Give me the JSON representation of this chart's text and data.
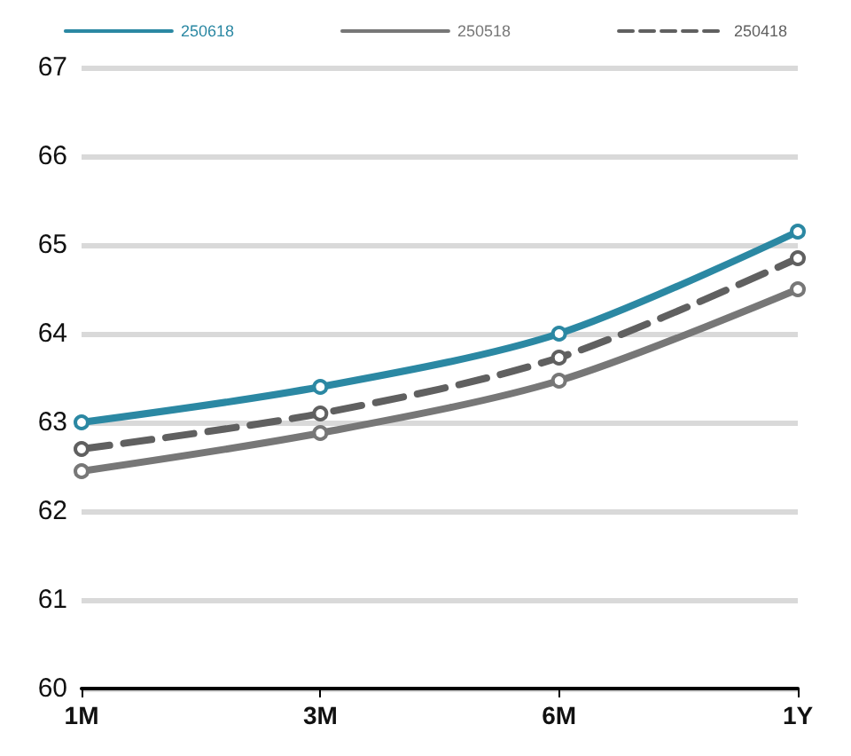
{
  "chart_data": {
    "type": "line",
    "categories": [
      "1M",
      "3M",
      "6M",
      "1Y"
    ],
    "series": [
      {
        "name": "250618",
        "color": "#2b88a3",
        "values": [
          63.0,
          63.4,
          64.0,
          65.15
        ],
        "line_style": "solid"
      },
      {
        "name": "250518",
        "color": "#777777",
        "values": [
          62.45,
          62.88,
          63.47,
          64.5
        ],
        "line_style": "solid"
      },
      {
        "name": "250418",
        "color": "#606060",
        "values": [
          62.7,
          63.1,
          63.73,
          64.85
        ],
        "line_style": "dashed"
      }
    ],
    "ylim": [
      60,
      67
    ],
    "yticks": [
      60,
      61,
      62,
      63,
      64,
      65,
      66,
      67
    ],
    "grid": "y",
    "legend": "top",
    "marker": "circle"
  }
}
